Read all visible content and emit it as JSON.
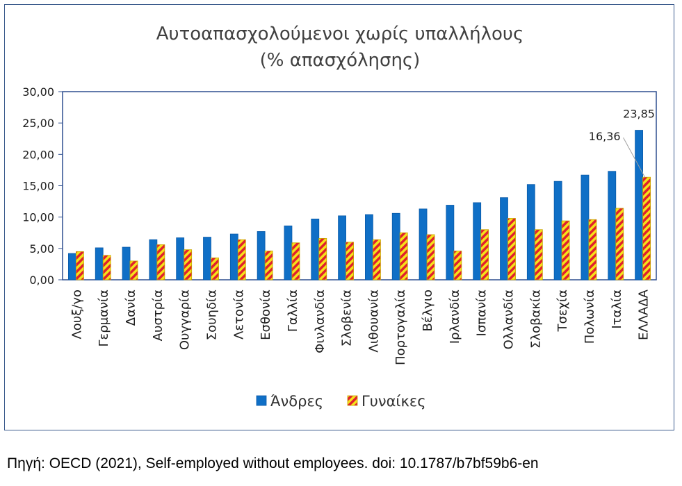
{
  "chart_data": {
    "type": "bar",
    "title_line1": "Αυτοαπασχολούμενοι χωρίς υπαλλήλους",
    "title_line2": "(% απασχόλησης)",
    "categories": [
      "Λουξ/γο",
      "Γερμανία",
      "Δανία",
      "Αυστρία",
      "Ουγγαρία",
      "Σουηδία",
      "Λετονία",
      "Εσθονία",
      "Γαλλία",
      "Φινλανδία",
      "Σλοβενία",
      "Λιθουανία",
      "Πορτογαλία",
      "Βέλγιο",
      "Ιρλανδία",
      "Ισπανία",
      "Ολλανδία",
      "Σλοβακία",
      "Τσεχία",
      "Πολωνία",
      "Ιταλία",
      "ΕΛΛΑΔΑ"
    ],
    "series": [
      {
        "name": "Άνδρες",
        "color": "#0f6fc6",
        "values": [
          4.2,
          5.1,
          5.2,
          6.4,
          6.7,
          6.8,
          7.3,
          7.7,
          8.6,
          9.7,
          10.2,
          10.4,
          10.6,
          11.3,
          11.9,
          12.3,
          13.1,
          15.2,
          15.7,
          16.7,
          17.3,
          23.85
        ]
      },
      {
        "name": "Γυναίκες",
        "color": "#f5e21a",
        "stripe": "#e0202e",
        "values": [
          4.5,
          3.9,
          3.0,
          5.6,
          4.8,
          3.5,
          6.4,
          4.6,
          5.9,
          6.6,
          6.0,
          6.4,
          7.5,
          7.2,
          4.6,
          8.0,
          9.8,
          8.0,
          9.4,
          9.6,
          11.4,
          16.36
        ]
      }
    ],
    "yticks": [
      "0,00",
      "5,00",
      "10,00",
      "15,00",
      "20,00",
      "25,00",
      "30,00"
    ],
    "ylim": [
      0,
      30
    ],
    "data_labels": [
      {
        "series": 0,
        "category": "ΕΛΛΑΔΑ",
        "text": "23,85"
      },
      {
        "series": 1,
        "category": "ΕΛΛΑΔΑ",
        "text": "16,36"
      }
    ],
    "legend_position": "bottom",
    "grid": false
  },
  "source_note": "Πηγή: OECD (2021), Self-employed without employees. doi: 10.1787/b7bf59b6-en"
}
